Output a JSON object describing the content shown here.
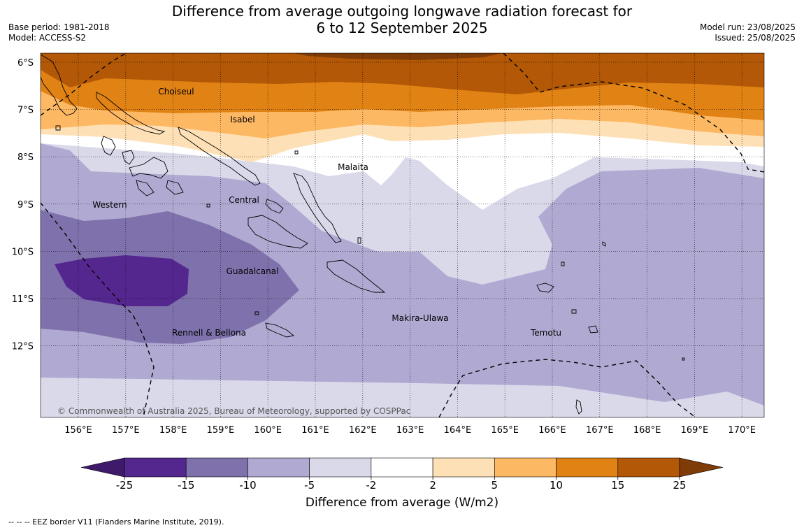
{
  "title": {
    "line1": "Difference from average outgoing longwave radiation forecast for",
    "line2": "6 to 12 September 2025"
  },
  "meta": {
    "base_period": "Base period: 1981-2018",
    "model": "Model: ACCESS-S2",
    "model_run": "Model run: 23/08/2025",
    "issued": "Issued: 25/08/2025"
  },
  "map": {
    "lon_ticks": [
      "156°E",
      "157°E",
      "158°E",
      "159°E",
      "160°E",
      "161°E",
      "162°E",
      "163°E",
      "164°E",
      "165°E",
      "166°E",
      "167°E",
      "168°E",
      "169°E",
      "170°E"
    ],
    "lat_ticks": [
      "6°S",
      "7°S",
      "8°S",
      "9°S",
      "10°S",
      "11°S",
      "12°S"
    ],
    "places": [
      {
        "name": "Choiseul"
      },
      {
        "name": "Isabel"
      },
      {
        "name": "Malaita"
      },
      {
        "name": "Western"
      },
      {
        "name": "Central"
      },
      {
        "name": "Guadalcanal"
      },
      {
        "name": "Makira-Ulawa"
      },
      {
        "name": "Rennell & Bellona"
      },
      {
        "name": "Temotu"
      }
    ],
    "copyright": "© Commonwealth of Australia 2025, Bureau of Meteorology, supported by COSPPac"
  },
  "colorbar": {
    "ticks": [
      "-25",
      "-15",
      "-10",
      "-5",
      "-2",
      "2",
      "5",
      "10",
      "15",
      "25"
    ],
    "colors": [
      "#3f1a6b",
      "#54278f",
      "#7f72ac",
      "#b0aad3",
      "#d9d9ea",
      "#ffffff",
      "#fee0b6",
      "#fdb863",
      "#e08214",
      "#b35806",
      "#7f3b08"
    ],
    "label": "Difference from average (W/m2)"
  },
  "legend_note": "--  --  -- EEZ border V11 (Flanders Marine Institute, 2019)."
}
